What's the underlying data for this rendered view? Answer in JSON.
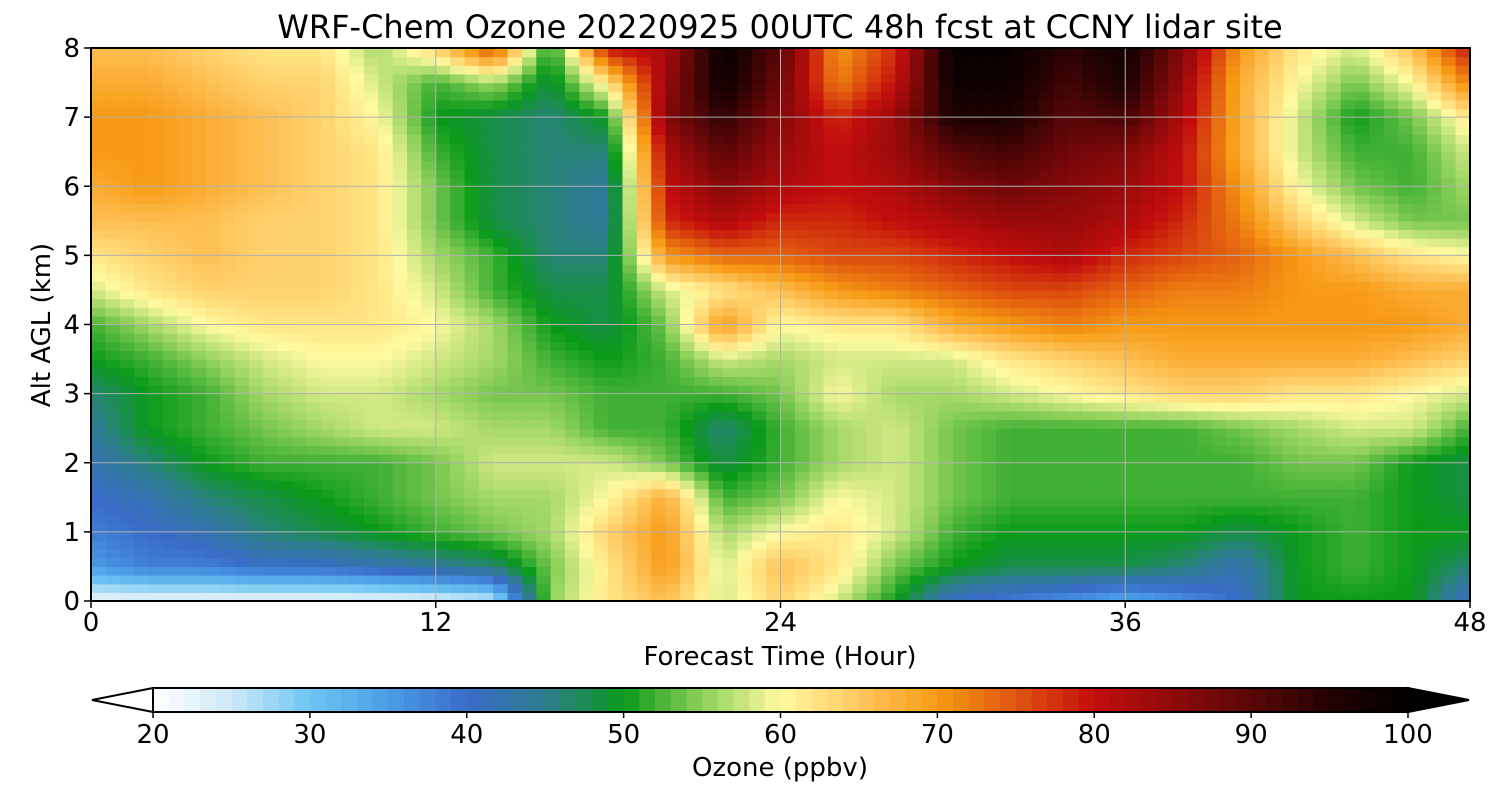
{
  "chart_data": {
    "type": "heatmap",
    "title": "WRF-Chem Ozone  20220925 00UTC 48h fcst at CCNY lidar site",
    "xlabel": "Forecast Time (Hour)",
    "ylabel": "Alt AGL (km)",
    "xlim": [
      0,
      48
    ],
    "ylim": [
      0,
      8
    ],
    "x_ticks": [
      "0",
      "12",
      "24",
      "36",
      "48"
    ],
    "y_ticks": [
      "0",
      "1",
      "2",
      "3",
      "4",
      "5",
      "6",
      "7",
      "8"
    ],
    "grid": true,
    "colorbar": {
      "label": "Ozone  (ppbv)",
      "min": 20,
      "max": 100,
      "extend": "both",
      "ticks": [
        "20",
        "30",
        "40",
        "50",
        "60",
        "70",
        "80",
        "90",
        "100"
      ],
      "stops": [
        {
          "v": 20,
          "c": "#ffffff"
        },
        {
          "v": 25,
          "c": "#cde8f7"
        },
        {
          "v": 30,
          "c": "#6cc6f2"
        },
        {
          "v": 35,
          "c": "#4a9de6"
        },
        {
          "v": 40,
          "c": "#3a6cc8"
        },
        {
          "v": 45,
          "c": "#2e7d8e"
        },
        {
          "v": 50,
          "c": "#0a9a1a"
        },
        {
          "v": 55,
          "c": "#8ed05a"
        },
        {
          "v": 60,
          "c": "#fffaa0"
        },
        {
          "v": 65,
          "c": "#ffc860"
        },
        {
          "v": 70,
          "c": "#f79a14"
        },
        {
          "v": 75,
          "c": "#e0560e"
        },
        {
          "v": 80,
          "c": "#c30d0d"
        },
        {
          "v": 85,
          "c": "#8f0a0a"
        },
        {
          "v": 90,
          "c": "#5a0606"
        },
        {
          "v": 95,
          "c": "#240202"
        },
        {
          "v": 100,
          "c": "#000000"
        }
      ]
    },
    "x_hours": [
      0,
      2,
      4,
      6,
      8,
      10,
      12,
      14,
      16,
      18,
      20,
      22,
      24,
      26,
      28,
      30,
      32,
      34,
      36,
      38,
      40,
      42,
      44,
      46,
      48
    ],
    "y_km": [
      0,
      0.5,
      1,
      1.5,
      2,
      2.5,
      3,
      3.5,
      4,
      4.5,
      5,
      5.5,
      6,
      6.5,
      7,
      7.5,
      8
    ],
    "ozone_ppbv": [
      [
        22,
        22,
        22,
        22,
        22,
        22,
        23,
        25,
        55,
        62,
        66,
        58,
        64,
        58,
        50,
        40,
        38,
        36,
        33,
        36,
        40,
        50,
        50,
        50,
        40
      ],
      [
        35,
        38,
        38,
        40,
        40,
        42,
        44,
        46,
        54,
        62,
        70,
        58,
        66,
        62,
        54,
        50,
        48,
        48,
        48,
        46,
        42,
        50,
        52,
        50,
        46
      ],
      [
        38,
        40,
        42,
        46,
        48,
        50,
        52,
        54,
        56,
        64,
        70,
        56,
        60,
        62,
        58,
        52,
        50,
        50,
        50,
        50,
        48,
        50,
        52,
        50,
        50
      ],
      [
        40,
        42,
        46,
        48,
        50,
        52,
        54,
        56,
        56,
        60,
        68,
        52,
        54,
        60,
        58,
        54,
        52,
        52,
        52,
        52,
        52,
        52,
        52,
        50,
        48
      ],
      [
        42,
        46,
        50,
        52,
        52,
        52,
        54,
        58,
        58,
        58,
        54,
        48,
        52,
        56,
        58,
        54,
        52,
        52,
        52,
        52,
        52,
        54,
        54,
        50,
        48
      ],
      [
        44,
        50,
        52,
        54,
        56,
        58,
        58,
        56,
        56,
        52,
        52,
        46,
        52,
        56,
        58,
        54,
        52,
        52,
        52,
        52,
        54,
        56,
        58,
        58,
        52
      ],
      [
        46,
        50,
        52,
        56,
        58,
        58,
        56,
        54,
        54,
        52,
        52,
        52,
        54,
        60,
        56,
        56,
        58,
        60,
        62,
        64,
        64,
        62,
        62,
        60,
        58
      ],
      [
        50,
        52,
        55,
        58,
        60,
        60,
        58,
        56,
        52,
        50,
        52,
        58,
        56,
        58,
        58,
        58,
        62,
        64,
        66,
        68,
        68,
        68,
        68,
        66,
        64
      ],
      [
        52,
        56,
        60,
        62,
        62,
        62,
        60,
        56,
        50,
        48,
        54,
        70,
        60,
        62,
        62,
        68,
        70,
        72,
        70,
        70,
        70,
        70,
        70,
        70,
        68
      ],
      [
        58,
        62,
        64,
        64,
        64,
        62,
        58,
        52,
        48,
        48,
        58,
        62,
        66,
        70,
        72,
        74,
        76,
        76,
        74,
        72,
        72,
        70,
        70,
        68,
        68
      ],
      [
        62,
        64,
        66,
        64,
        64,
        62,
        56,
        52,
        46,
        46,
        70,
        74,
        74,
        76,
        76,
        78,
        80,
        82,
        78,
        76,
        74,
        70,
        66,
        62,
        60
      ],
      [
        66,
        66,
        66,
        64,
        64,
        62,
        54,
        48,
        46,
        44,
        78,
        82,
        78,
        78,
        80,
        82,
        84,
        84,
        82,
        78,
        72,
        64,
        58,
        54,
        54
      ],
      [
        68,
        70,
        68,
        66,
        64,
        62,
        54,
        48,
        46,
        44,
        80,
        86,
        82,
        80,
        82,
        86,
        88,
        86,
        84,
        80,
        70,
        60,
        54,
        52,
        56
      ],
      [
        70,
        70,
        68,
        66,
        64,
        62,
        52,
        48,
        46,
        46,
        82,
        90,
        84,
        80,
        84,
        90,
        92,
        88,
        86,
        80,
        68,
        58,
        52,
        52,
        58
      ],
      [
        70,
        70,
        68,
        66,
        64,
        60,
        50,
        48,
        46,
        50,
        86,
        94,
        86,
        78,
        84,
        96,
        96,
        90,
        92,
        82,
        68,
        58,
        50,
        54,
        62
      ],
      [
        68,
        68,
        66,
        64,
        64,
        58,
        52,
        56,
        48,
        62,
        84,
        98,
        88,
        72,
        80,
        98,
        98,
        92,
        96,
        84,
        68,
        60,
        54,
        60,
        72
      ],
      [
        66,
        66,
        64,
        62,
        62,
        56,
        64,
        76,
        50,
        80,
        82,
        99,
        90,
        70,
        78,
        99,
        99,
        94,
        98,
        86,
        70,
        62,
        58,
        66,
        80
      ]
    ]
  }
}
